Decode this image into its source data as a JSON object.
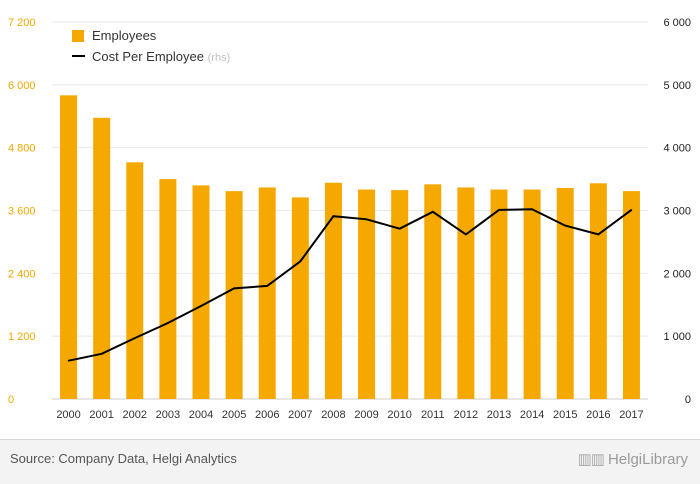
{
  "chart_data": {
    "type": "bar+line",
    "categories": [
      "2000",
      "2001",
      "2002",
      "2003",
      "2004",
      "2005",
      "2006",
      "2007",
      "2008",
      "2009",
      "2010",
      "2011",
      "2012",
      "2013",
      "2014",
      "2015",
      "2016",
      "2017"
    ],
    "series": [
      {
        "name": "Employees",
        "type": "bar",
        "axis": "left",
        "color": "#f5a900",
        "values": [
          5800,
          5370,
          4520,
          4200,
          4080,
          3970,
          4040,
          3850,
          4130,
          4000,
          3990,
          4100,
          4040,
          4000,
          4000,
          4030,
          4120,
          3970
        ]
      },
      {
        "name": "Cost Per Employee",
        "name_suffix": "(rhs)",
        "type": "line",
        "axis": "right",
        "color": "#000000",
        "values": [
          610,
          720,
          970,
          1210,
          1480,
          1760,
          1800,
          2190,
          2910,
          2860,
          2710,
          2980,
          2620,
          3010,
          3020,
          2760,
          2620,
          3010
        ]
      }
    ],
    "y_left": {
      "ylim": [
        0,
        7200
      ],
      "ticks": [
        "0",
        "1 200",
        "2 400",
        "3 600",
        "4 800",
        "6 000",
        "7 200"
      ]
    },
    "y_right": {
      "ylim": [
        0,
        6000
      ],
      "ticks": [
        "0",
        "1 000",
        "2 000",
        "3 000",
        "4 000",
        "5 000",
        "6 000"
      ]
    },
    "grid": "horizontal",
    "legend": "top-left"
  },
  "footer": {
    "source": "Source: Company Data, Helgi Analytics",
    "logo_text": "HelgiLibrary"
  }
}
